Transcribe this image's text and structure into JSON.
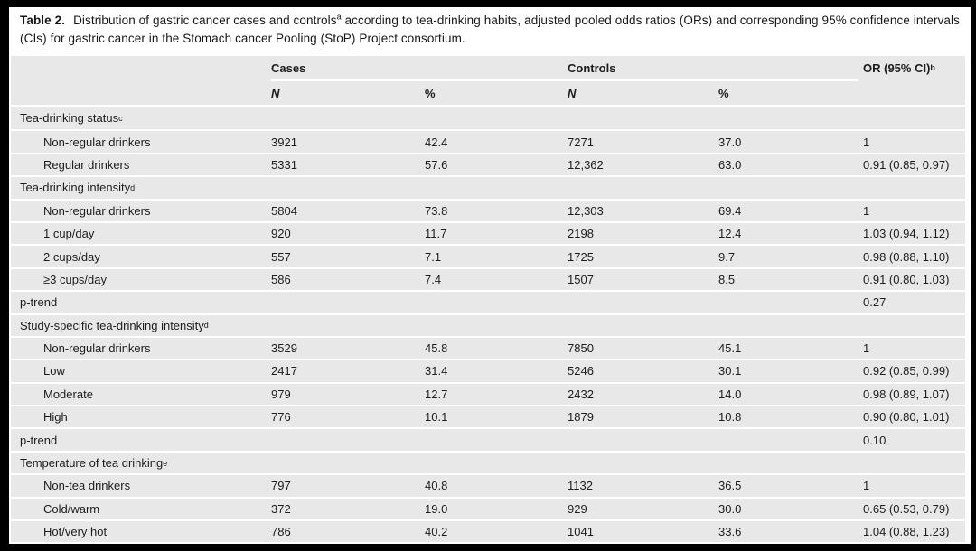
{
  "colors": {
    "frame": "#000000",
    "page_bg": "#ffffff",
    "table_bg": "#e8e8e8",
    "row_separator": "#ffffff",
    "text": "#1d1d1d"
  },
  "title": {
    "label": "Table 2.",
    "line1_pre_sup": "Distribution of gastric cancer cases and controls",
    "sup": "a",
    "line1_post_sup": " according to tea-drinking habits, adjusted pooled odds ratios (ORs) and corresponding",
    "line2": "95% confidence intervals (CIs) for gastric cancer in the Stomach cancer Pooling (StoP) Project consortium."
  },
  "table": {
    "header": {
      "cases": "Cases",
      "controls": "Controls",
      "or_label": "OR (95% CI)",
      "or_sup": "b",
      "n": "N",
      "pct": "%"
    },
    "rows": [
      {
        "type": "section",
        "label": "Tea-drinking status",
        "sup": "c"
      },
      {
        "type": "data",
        "label": "Non-regular drinkers",
        "cases_n": "3921",
        "cases_pct": "42.4",
        "controls_n": "7271",
        "controls_pct": "37.0",
        "or": "1"
      },
      {
        "type": "data",
        "label": "Regular drinkers",
        "cases_n": "5331",
        "cases_pct": "57.6",
        "controls_n": "12,362",
        "controls_pct": "63.0",
        "or": "0.91 (0.85, 0.97)"
      },
      {
        "type": "section",
        "label": "Tea-drinking intensity",
        "sup": "d"
      },
      {
        "type": "data",
        "label": "Non-regular drinkers",
        "cases_n": "5804",
        "cases_pct": "73.8",
        "controls_n": "12,303",
        "controls_pct": "69.4",
        "or": "1"
      },
      {
        "type": "data",
        "label": "1 cup/day",
        "cases_n": "920",
        "cases_pct": "11.7",
        "controls_n": "2198",
        "controls_pct": "12.4",
        "or": "1.03 (0.94, 1.12)"
      },
      {
        "type": "data",
        "label": "2 cups/day",
        "cases_n": "557",
        "cases_pct": "7.1",
        "controls_n": "1725",
        "controls_pct": "9.7",
        "or": "0.98 (0.88, 1.10)"
      },
      {
        "type": "data",
        "label": "≥3 cups/day",
        "cases_n": "586",
        "cases_pct": "7.4",
        "controls_n": "1507",
        "controls_pct": "8.5",
        "or": "0.91 (0.80, 1.03)"
      },
      {
        "type": "ptrend",
        "label": "p-trend",
        "or": "0.27"
      },
      {
        "type": "section",
        "label": "Study-specific tea-drinking intensity",
        "sup": "d"
      },
      {
        "type": "data",
        "label": "Non-regular drinkers",
        "cases_n": "3529",
        "cases_pct": "45.8",
        "controls_n": "7850",
        "controls_pct": "45.1",
        "or": "1"
      },
      {
        "type": "data",
        "label": "Low",
        "cases_n": "2417",
        "cases_pct": "31.4",
        "controls_n": "5246",
        "controls_pct": "30.1",
        "or": "0.92 (0.85, 0.99)"
      },
      {
        "type": "data",
        "label": "Moderate",
        "cases_n": "979",
        "cases_pct": "12.7",
        "controls_n": "2432",
        "controls_pct": "14.0",
        "or": "0.98 (0.89, 1.07)"
      },
      {
        "type": "data",
        "label": "High",
        "cases_n": "776",
        "cases_pct": "10.1",
        "controls_n": "1879",
        "controls_pct": "10.8",
        "or": "0.90 (0.80, 1.01)"
      },
      {
        "type": "ptrend",
        "label": "p-trend",
        "or": "0.10"
      },
      {
        "type": "section",
        "label": "Temperature of tea drinking",
        "sup": "e"
      },
      {
        "type": "data",
        "label": "Non-tea drinkers",
        "cases_n": "797",
        "cases_pct": "40.8",
        "controls_n": "1132",
        "controls_pct": "36.5",
        "or": "1"
      },
      {
        "type": "data",
        "label": "Cold/warm",
        "cases_n": "372",
        "cases_pct": "19.0",
        "controls_n": "929",
        "controls_pct": "30.0",
        "or": "0.65 (0.53, 0.79)"
      },
      {
        "type": "data",
        "label": "Hot/very hot",
        "cases_n": "786",
        "cases_pct": "40.2",
        "controls_n": "1041",
        "controls_pct": "33.6",
        "or": "1.04 (0.88, 1.23)"
      }
    ]
  }
}
